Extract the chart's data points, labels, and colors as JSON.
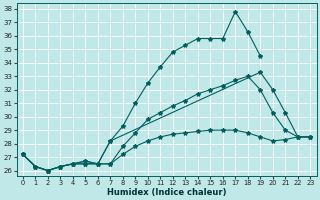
{
  "xlabel": "Humidex (Indice chaleur)",
  "bg_color": "#c0e8e8",
  "line_color": "#006060",
  "grid_color": "#ffffff",
  "xlim": [
    -0.5,
    23.5
  ],
  "ylim": [
    25.6,
    38.4
  ],
  "yticks": [
    26,
    27,
    28,
    29,
    30,
    31,
    32,
    33,
    34,
    35,
    36,
    37,
    38
  ],
  "xticks": [
    0,
    1,
    2,
    3,
    4,
    5,
    6,
    7,
    8,
    9,
    10,
    11,
    12,
    13,
    14,
    15,
    16,
    17,
    18,
    19,
    20,
    21,
    22,
    23
  ],
  "line1_y": [
    27.2,
    26.3,
    26.0,
    26.3,
    26.5,
    26.7,
    26.5,
    28.2,
    29.3,
    31.0,
    32.5,
    33.7,
    34.8,
    35.3,
    35.8,
    35.8,
    35.8,
    37.8,
    36.3,
    34.5,
    null,
    null,
    null,
    null
  ],
  "line2_y": [
    27.2,
    26.3,
    26.0,
    26.3,
    26.5,
    26.7,
    26.5,
    28.2,
    null,
    null,
    null,
    null,
    null,
    null,
    null,
    null,
    null,
    null,
    null,
    33.3,
    32.0,
    30.3,
    28.5,
    28.5
  ],
  "line3_y": [
    27.2,
    26.3,
    26.0,
    26.3,
    26.5,
    26.5,
    26.5,
    26.5,
    27.2,
    27.8,
    28.2,
    28.5,
    28.7,
    28.8,
    28.9,
    29.0,
    29.0,
    29.0,
    28.8,
    28.5,
    28.2,
    28.3,
    28.5,
    28.5
  ],
  "line4_y": [
    27.2,
    26.3,
    26.0,
    26.3,
    26.5,
    26.5,
    26.5,
    26.5,
    27.8,
    28.8,
    29.8,
    30.3,
    30.8,
    31.2,
    31.7,
    32.0,
    32.3,
    32.7,
    33.0,
    32.0,
    30.3,
    29.0,
    28.5,
    28.5
  ]
}
